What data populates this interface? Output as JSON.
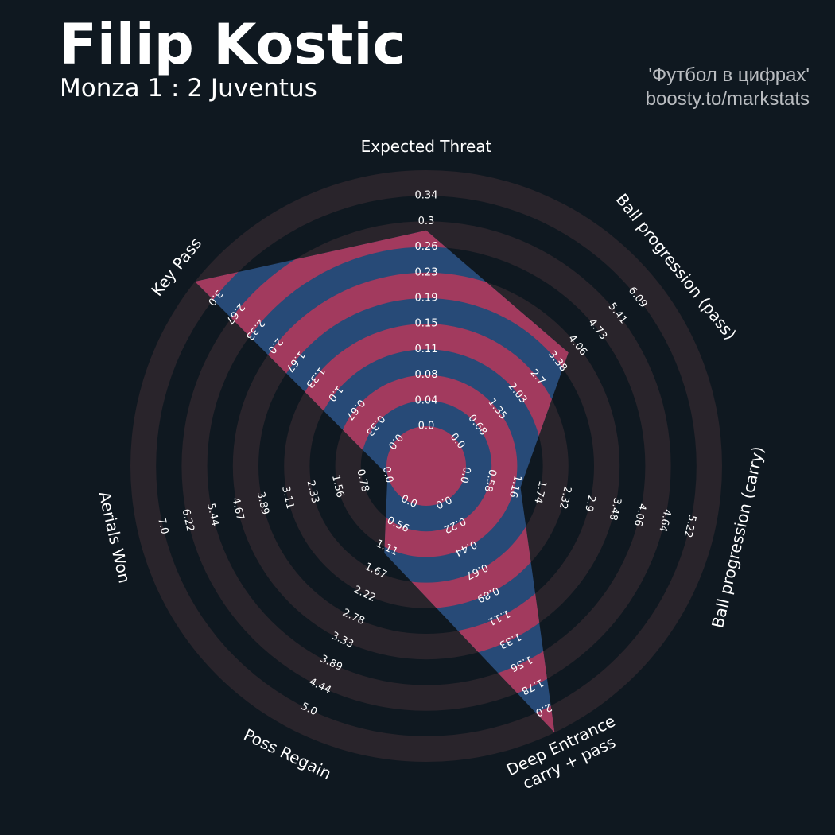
{
  "header": {
    "player_name": "Filip Kostic",
    "match": "Monza 1 : 2 Juventus",
    "credit_line1": "'Футбол в цифрах'",
    "credit_line2": "boosty.to/markstats"
  },
  "colors": {
    "background": "#0f1820",
    "ring_fill": "#29242b",
    "player_primary": "#274a77",
    "player_alternate": "#a23a5e",
    "label_text": "#ffffff"
  },
  "chart_data": {
    "type": "radar",
    "rings": 5,
    "params": [
      {
        "label": "Expected Threat",
        "value": 0.26,
        "min": 0.0,
        "max": 0.34,
        "ticks": [
          "0.0",
          "0.04",
          "0.08",
          "0.11",
          "0.15",
          "0.19",
          "0.23",
          "0.26",
          "0.3",
          "0.34"
        ]
      },
      {
        "label": "Ball progression (pass)",
        "value": 3.38,
        "min": 0.0,
        "max": 6.09,
        "ticks": [
          "0.0",
          "0.68",
          "1.35",
          "2.03",
          "2.7",
          "3.38",
          "4.06",
          "4.73",
          "5.41",
          "6.09"
        ]
      },
      {
        "label": "Ball progression (carry)",
        "value": 1.16,
        "min": 0.0,
        "max": 5.22,
        "ticks": [
          "0.0",
          "0.58",
          "1.16",
          "1.74",
          "2.32",
          "2.9",
          "3.48",
          "4.06",
          "4.64",
          "5.22"
        ]
      },
      {
        "label": "Deep Entrance\ncarry + pass",
        "value": 2.0,
        "min": 0.0,
        "max": 2.0,
        "ticks": [
          "0.0",
          "0.22",
          "0.44",
          "0.67",
          "0.89",
          "1.11",
          "1.33",
          "1.56",
          "1.78",
          "2.0"
        ]
      },
      {
        "label": "Poss Regain",
        "value": 1.11,
        "min": 0.0,
        "max": 5.0,
        "ticks": [
          "0.0",
          "0.56",
          "1.11",
          "1.67",
          "2.22",
          "2.78",
          "3.33",
          "3.89",
          "4.44",
          "5.0"
        ]
      },
      {
        "label": "Aerials Won",
        "value": 0.0,
        "min": 0.0,
        "max": 7.0,
        "ticks": [
          "0.0",
          "0.78",
          "1.56",
          "2.33",
          "3.11",
          "3.89",
          "4.67",
          "5.44",
          "6.22",
          "7.0"
        ]
      },
      {
        "label": "Key Pass",
        "value": 3.0,
        "min": 0.0,
        "max": 3.0,
        "ticks": [
          "0.0",
          "0.33",
          "0.67",
          "1.0",
          "1.33",
          "1.67",
          "2.0",
          "2.33",
          "2.67",
          "3.0"
        ]
      }
    ]
  }
}
